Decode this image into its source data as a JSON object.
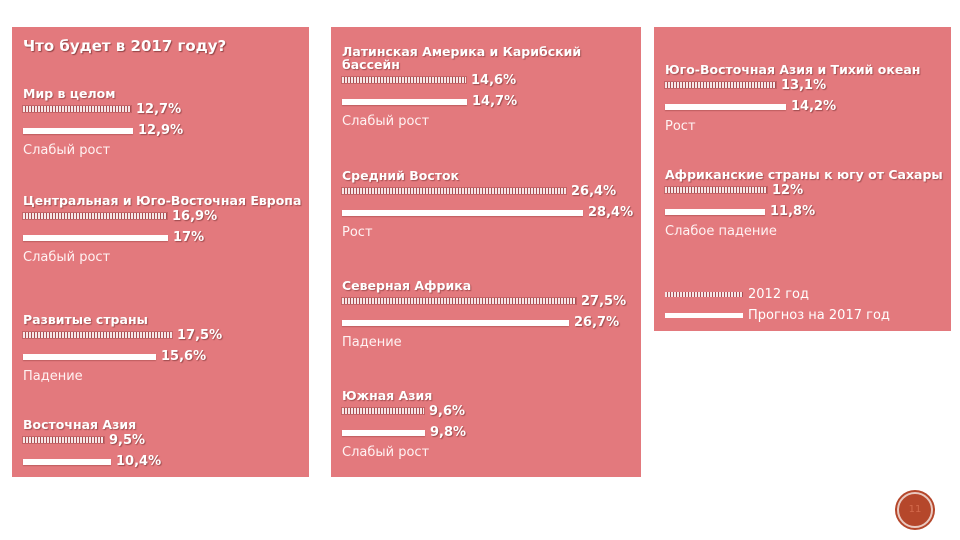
{
  "title": "Что будет в 2017 году?",
  "legend": {
    "series_2012": "2012 год",
    "series_2017": "Прогноз на 2017 год"
  },
  "colors": {
    "panel": "#e3797d",
    "bar_2017": "#ffffff",
    "bar_2012": "hatched-gray",
    "badge": "#b5472b"
  },
  "slide_number": "11",
  "chart_data": {
    "type": "bar",
    "orientation": "horizontal",
    "unit": "%",
    "series": [
      {
        "name": "2012 год",
        "values": [
          12.7,
          16.9,
          17.5,
          9.5,
          14.6,
          26.4,
          27.5,
          9.6,
          13.1,
          12.0
        ]
      },
      {
        "name": "Прогноз на 2017 год",
        "values": [
          12.9,
          17.0,
          15.6,
          10.4,
          14.7,
          28.4,
          26.7,
          9.8,
          14.2,
          11.8
        ]
      }
    ],
    "regions": [
      {
        "name": "Мир в целом",
        "v2012": 12.7,
        "v2017": 12.9,
        "label2012": "12,7%",
        "label2017": "12,9%",
        "trend": "Слабый рост"
      },
      {
        "name": "Центральная и Юго-Восточная Европа",
        "v2012": 16.9,
        "v2017": 17.0,
        "label2012": "16,9%",
        "label2017": "17%",
        "trend": "Слабый рост"
      },
      {
        "name": "Развитые страны",
        "v2012": 17.5,
        "v2017": 15.6,
        "label2012": "17,5%",
        "label2017": "15,6%",
        "trend": "Падение"
      },
      {
        "name": "Восточная Азия",
        "v2012": 9.5,
        "v2017": 10.4,
        "label2012": "9,5%",
        "label2017": "10,4%",
        "trend": ""
      },
      {
        "name": "Латинская Америка и Карибский бассейн",
        "v2012": 14.6,
        "v2017": 14.7,
        "label2012": "14,6%",
        "label2017": "14,7%",
        "trend": "Слабый рост"
      },
      {
        "name": "Средний Восток",
        "v2012": 26.4,
        "v2017": 28.4,
        "label2012": "26,4%",
        "label2017": "28,4%",
        "trend": "Рост"
      },
      {
        "name": "Северная Африка",
        "v2012": 27.5,
        "v2017": 26.7,
        "label2012": "27,5%",
        "label2017": "26,7%",
        "trend": "Падение"
      },
      {
        "name": "Южная Азия",
        "v2012": 9.6,
        "v2017": 9.8,
        "label2012": "9,6%",
        "label2017": "9,8%",
        "trend": "Слабый рост"
      },
      {
        "name": "Юго-Восточная Азия и Тихий океан",
        "v2012": 13.1,
        "v2017": 14.2,
        "label2012": "13,1%",
        "label2017": "14,2%",
        "trend": "Рост"
      },
      {
        "name": "Африканские страны к югу от Сахары",
        "v2012": 12.0,
        "v2017": 11.8,
        "label2012": "12%",
        "label2017": "11,8%",
        "trend": "Слабое падение"
      }
    ],
    "title": "Что будет в 2017 году?",
    "xlim": [
      0,
      30
    ],
    "legend": "bottom-right"
  }
}
